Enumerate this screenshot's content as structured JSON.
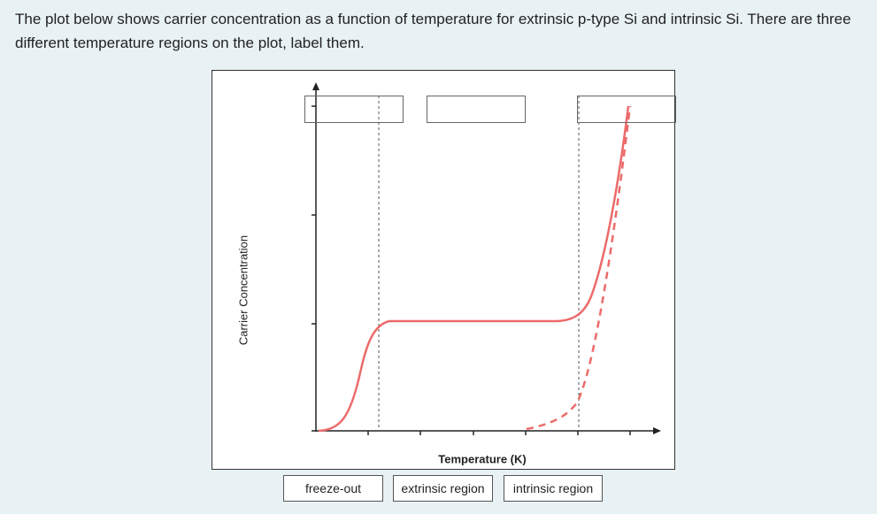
{
  "question": "The plot below shows carrier concentration as a function of temperature for extrinsic p-type Si and intrinsic Si. There are three different temperature regions on the plot, label them.",
  "figure": {
    "y_axis_label": "Carrier Concentration",
    "x_axis_label": "Temperature (K)"
  },
  "answer_options": [
    "freeze-out",
    "extrinsic region",
    "intrinsic region"
  ]
}
